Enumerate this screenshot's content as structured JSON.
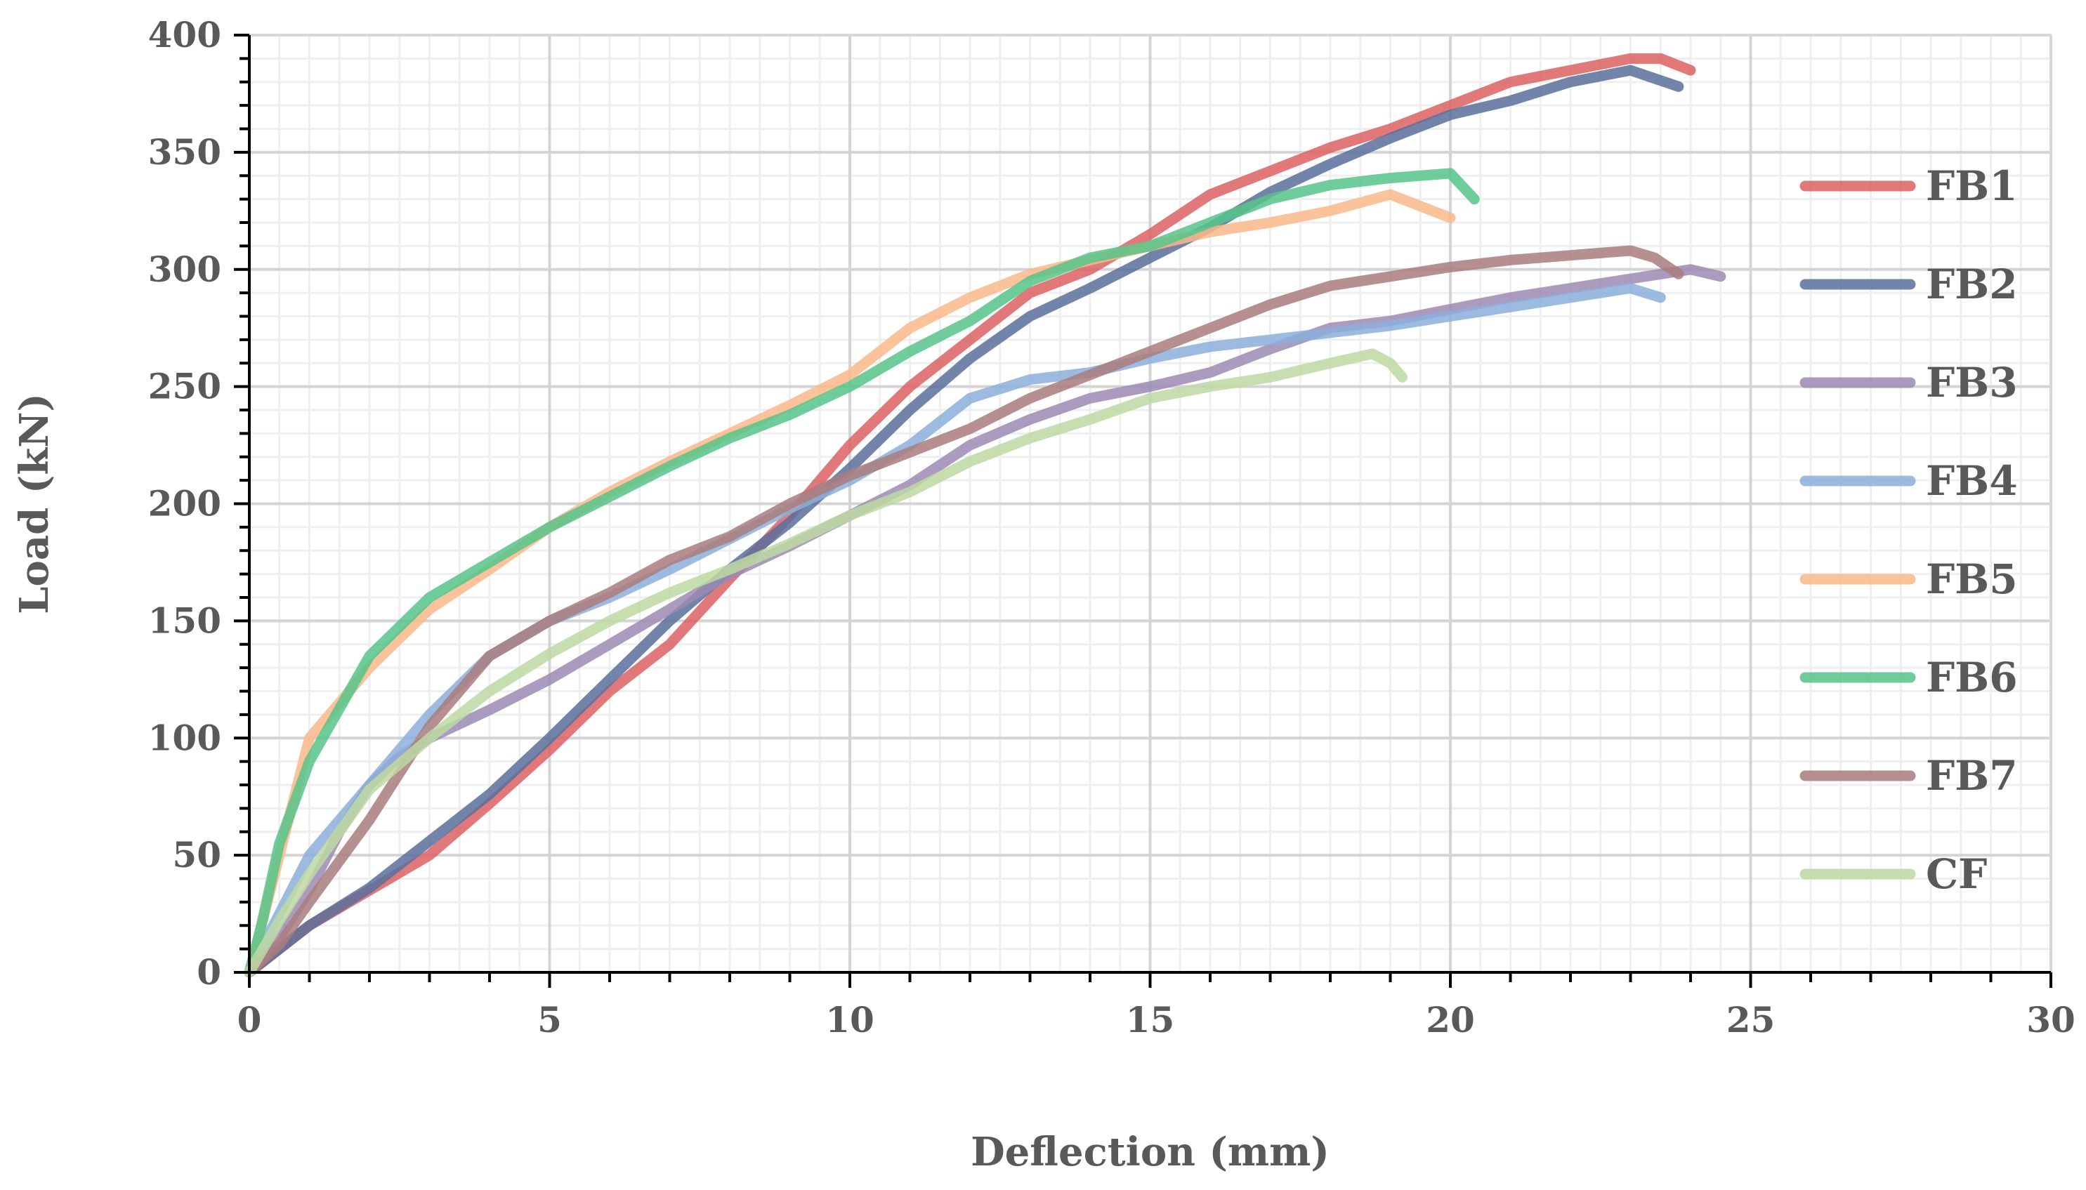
{
  "chart_data": {
    "type": "line",
    "xlabel": "Deflection (mm)",
    "ylabel": "Load (kN)",
    "xlim": [
      0,
      30
    ],
    "ylim": [
      0,
      400
    ],
    "xticks": [
      0,
      5,
      10,
      15,
      20,
      25,
      30
    ],
    "yticks": [
      0,
      50,
      100,
      150,
      200,
      250,
      300,
      350,
      400
    ],
    "x_tick_labels": [
      "0",
      "5",
      "10",
      "15",
      "20",
      "25",
      "30"
    ],
    "y_tick_labels": [
      "0",
      "50",
      "100",
      "150",
      "200",
      "250",
      "300",
      "350",
      "400"
    ],
    "grid": true,
    "legend_position": "right",
    "series": [
      {
        "name": "FB1",
        "color": "#dc6264",
        "points": [
          [
            0,
            0
          ],
          [
            1,
            20
          ],
          [
            2,
            35
          ],
          [
            3,
            50
          ],
          [
            4,
            72
          ],
          [
            5,
            95
          ],
          [
            6,
            120
          ],
          [
            7,
            140
          ],
          [
            8,
            168
          ],
          [
            9,
            195
          ],
          [
            10,
            225
          ],
          [
            11,
            250
          ],
          [
            12,
            270
          ],
          [
            13,
            290
          ],
          [
            14,
            300
          ],
          [
            15,
            315
          ],
          [
            16,
            332
          ],
          [
            17,
            342
          ],
          [
            18,
            352
          ],
          [
            19,
            360
          ],
          [
            20,
            370
          ],
          [
            21,
            380
          ],
          [
            22,
            385
          ],
          [
            23,
            390
          ],
          [
            23.5,
            390
          ],
          [
            24,
            385
          ]
        ]
      },
      {
        "name": "FB2",
        "color": "#5b6f9b",
        "points": [
          [
            0,
            0
          ],
          [
            1,
            20
          ],
          [
            2,
            36
          ],
          [
            3,
            56
          ],
          [
            4,
            76
          ],
          [
            5,
            100
          ],
          [
            6,
            125
          ],
          [
            7,
            150
          ],
          [
            8,
            172
          ],
          [
            9,
            192
          ],
          [
            10,
            215
          ],
          [
            11,
            240
          ],
          [
            12,
            262
          ],
          [
            13,
            280
          ],
          [
            14,
            292
          ],
          [
            15,
            305
          ],
          [
            16,
            318
          ],
          [
            17,
            333
          ],
          [
            18,
            345
          ],
          [
            19,
            356
          ],
          [
            20,
            366
          ],
          [
            21,
            372
          ],
          [
            22,
            380
          ],
          [
            23,
            385
          ],
          [
            23.8,
            378
          ]
        ]
      },
      {
        "name": "FB3",
        "color": "#9b89b4",
        "points": [
          [
            0,
            0
          ],
          [
            0.5,
            15
          ],
          [
            1,
            35
          ],
          [
            1.5,
            60
          ],
          [
            2,
            80
          ],
          [
            2.5,
            92
          ],
          [
            3,
            100
          ],
          [
            4,
            112
          ],
          [
            5,
            125
          ],
          [
            6,
            140
          ],
          [
            7,
            155
          ],
          [
            8,
            170
          ],
          [
            9,
            182
          ],
          [
            10,
            195
          ],
          [
            11,
            208
          ],
          [
            12,
            225
          ],
          [
            13,
            236
          ],
          [
            14,
            245
          ],
          [
            15,
            250
          ],
          [
            16,
            256
          ],
          [
            17,
            266
          ],
          [
            18,
            275
          ],
          [
            19,
            278
          ],
          [
            20,
            283
          ],
          [
            21,
            288
          ],
          [
            22,
            292
          ],
          [
            23,
            296
          ],
          [
            24,
            300
          ],
          [
            24.5,
            297
          ]
        ]
      },
      {
        "name": "FB4",
        "color": "#8cafdb",
        "points": [
          [
            0,
            0
          ],
          [
            0.5,
            25
          ],
          [
            1,
            50
          ],
          [
            2,
            80
          ],
          [
            3,
            110
          ],
          [
            4,
            135
          ],
          [
            5,
            150
          ],
          [
            6,
            160
          ],
          [
            7,
            172
          ],
          [
            8,
            185
          ],
          [
            9,
            198
          ],
          [
            10,
            210
          ],
          [
            11,
            225
          ],
          [
            12,
            245
          ],
          [
            13,
            253
          ],
          [
            14,
            256
          ],
          [
            15,
            262
          ],
          [
            16,
            267
          ],
          [
            17,
            270
          ],
          [
            18,
            273
          ],
          [
            19,
            276
          ],
          [
            20,
            280
          ],
          [
            21,
            284
          ],
          [
            22,
            288
          ],
          [
            23,
            292
          ],
          [
            23.5,
            288
          ]
        ]
      },
      {
        "name": "FB5",
        "color": "#f9b98a",
        "points": [
          [
            0,
            0
          ],
          [
            0.5,
            50
          ],
          [
            1,
            100
          ],
          [
            2,
            130
          ],
          [
            3,
            155
          ],
          [
            4,
            172
          ],
          [
            5,
            190
          ],
          [
            6,
            205
          ],
          [
            7,
            218
          ],
          [
            8,
            230
          ],
          [
            9,
            242
          ],
          [
            10,
            255
          ],
          [
            11,
            275
          ],
          [
            12,
            288
          ],
          [
            13,
            298
          ],
          [
            14,
            304
          ],
          [
            15,
            310
          ],
          [
            16,
            316
          ],
          [
            17,
            320
          ],
          [
            18,
            325
          ],
          [
            19,
            332
          ],
          [
            20,
            322
          ]
        ]
      },
      {
        "name": "FB6",
        "color": "#56c489",
        "points": [
          [
            0,
            0
          ],
          [
            0.2,
            20
          ],
          [
            0.5,
            55
          ],
          [
            1,
            90
          ],
          [
            2,
            135
          ],
          [
            3,
            160
          ],
          [
            4,
            175
          ],
          [
            5,
            190
          ],
          [
            6,
            203
          ],
          [
            7,
            216
          ],
          [
            8,
            228
          ],
          [
            9,
            238
          ],
          [
            10,
            250
          ],
          [
            11,
            265
          ],
          [
            12,
            278
          ],
          [
            13,
            295
          ],
          [
            14,
            305
          ],
          [
            15,
            310
          ],
          [
            16,
            320
          ],
          [
            17,
            330
          ],
          [
            18,
            336
          ],
          [
            19,
            339
          ],
          [
            20,
            341
          ],
          [
            20.4,
            330
          ]
        ]
      },
      {
        "name": "FB7",
        "color": "#a97c7c",
        "points": [
          [
            0,
            0
          ],
          [
            0.5,
            12
          ],
          [
            1,
            30
          ],
          [
            2,
            65
          ],
          [
            3,
            105
          ],
          [
            4,
            135
          ],
          [
            5,
            150
          ],
          [
            6,
            162
          ],
          [
            7,
            176
          ],
          [
            8,
            186
          ],
          [
            9,
            200
          ],
          [
            10,
            212
          ],
          [
            11,
            222
          ],
          [
            12,
            232
          ],
          [
            13,
            245
          ],
          [
            14,
            255
          ],
          [
            15,
            265
          ],
          [
            16,
            275
          ],
          [
            17,
            285
          ],
          [
            18,
            293
          ],
          [
            19,
            297
          ],
          [
            20,
            301
          ],
          [
            21,
            304
          ],
          [
            22,
            306
          ],
          [
            23,
            308
          ],
          [
            23.4,
            305
          ],
          [
            23.8,
            298
          ]
        ]
      },
      {
        "name": "CF",
        "color": "#bdd9a2",
        "points": [
          [
            0,
            0
          ],
          [
            0.5,
            22
          ],
          [
            1,
            42
          ],
          [
            2,
            78
          ],
          [
            3,
            100
          ],
          [
            4,
            120
          ],
          [
            5,
            136
          ],
          [
            6,
            150
          ],
          [
            7,
            162
          ],
          [
            8,
            172
          ],
          [
            9,
            183
          ],
          [
            10,
            195
          ],
          [
            11,
            205
          ],
          [
            12,
            218
          ],
          [
            13,
            228
          ],
          [
            14,
            236
          ],
          [
            15,
            245
          ],
          [
            16,
            250
          ],
          [
            17,
            254
          ],
          [
            18,
            260
          ],
          [
            18.7,
            264
          ],
          [
            19,
            260
          ],
          [
            19.2,
            254
          ]
        ]
      }
    ]
  }
}
